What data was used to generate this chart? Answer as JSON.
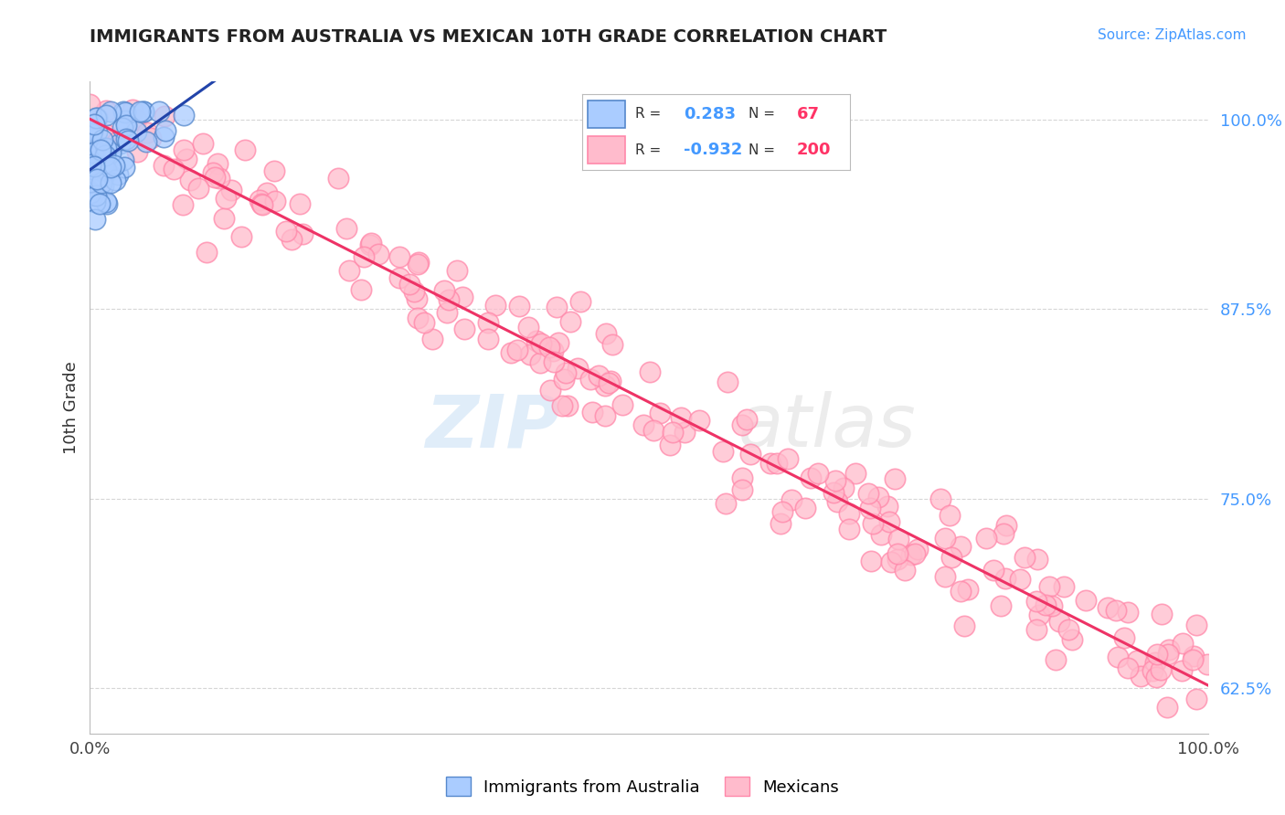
{
  "title": "IMMIGRANTS FROM AUSTRALIA VS MEXICAN 10TH GRADE CORRELATION CHART",
  "source_text": "Source: ZipAtlas.com",
  "ylabel": "10th Grade",
  "yticks": [
    0.625,
    0.75,
    0.875,
    1.0
  ],
  "ytick_labels": [
    "62.5%",
    "75.0%",
    "87.5%",
    "100.0%"
  ],
  "australia_R": 0.283,
  "australia_N": 67,
  "mexico_R": -0.932,
  "mexico_N": 200,
  "australia_scatter_face": "#aaccff",
  "australia_scatter_edge": "#5588cc",
  "mexico_scatter_face": "#ffbbcc",
  "mexico_scatter_edge": "#ff88aa",
  "australia_line_color": "#2244aa",
  "mexico_line_color": "#ee3366",
  "watermark_color1": "#cce4ff",
  "watermark_color2": "#dddddd",
  "background_color": "#ffffff",
  "grid_color": "#cccccc",
  "title_color": "#222222",
  "source_color": "#4499ff",
  "ytick_color": "#4499ff",
  "legend_R_color": "#4499ff",
  "legend_N_color": "#ff3366"
}
